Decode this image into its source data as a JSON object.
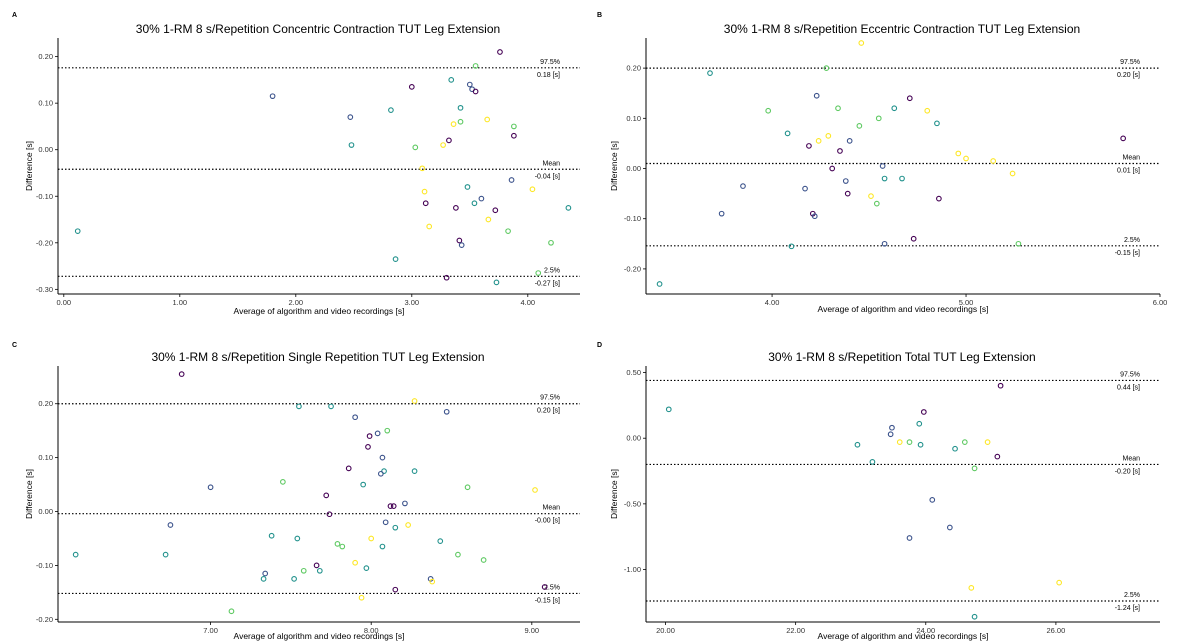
{
  "figure": {
    "panels": [
      {
        "letter": "A"
      },
      {
        "letter": "B"
      },
      {
        "letter": "C"
      },
      {
        "letter": "D"
      }
    ]
  },
  "colors": {
    "palette": [
      "#440154",
      "#3b528b",
      "#21918c",
      "#5ec962",
      "#fde725"
    ],
    "reference_line": "#000000",
    "axis": "#000000"
  },
  "chart_data": [
    {
      "type": "scatter",
      "panel": "A",
      "title": "30% 1-RM 8 s/Repetition Concentric Contraction TUT Leg Extension",
      "xlabel": "Average of algorithm and video recordings [s]",
      "ylabel": "Difference [s]",
      "xlim": [
        -0.05,
        4.45
      ],
      "ylim": [
        -0.31,
        0.24
      ],
      "xticks": [
        0,
        1,
        2,
        3,
        4
      ],
      "xtick_labels": [
        "0.00",
        "1.00",
        "2.00",
        "3.00",
        "4.00"
      ],
      "yticks": [
        0.2,
        0.1,
        0.0,
        -0.1,
        -0.2,
        -0.3
      ],
      "ytick_labels": [
        "0.20",
        "0.10",
        "0.00",
        "-0.10",
        "-0.20",
        "-0.30"
      ],
      "hlines": [
        {
          "value": 0.176,
          "top": "97.5%",
          "bottom": "0.18 [s]"
        },
        {
          "value": -0.042,
          "top": "Mean",
          "bottom": "-0.04 [s]"
        },
        {
          "value": -0.272,
          "top": "2.5%",
          "bottom": "-0.27 [s]"
        }
      ],
      "x": [
        0.12,
        1.8,
        2.47,
        2.82,
        3.0,
        3.34,
        3.55,
        3.76,
        3.88,
        2.48,
        3.36,
        3.52,
        3.42,
        3.42,
        3.5,
        3.55,
        3.65,
        3.32,
        3.27,
        3.03,
        3.88,
        3.09,
        3.11,
        3.12,
        3.48,
        3.54,
        3.6,
        3.38,
        3.15,
        3.72,
        3.86,
        3.66,
        4.04,
        4.35,
        4.2,
        3.83,
        3.41,
        3.43,
        3.3,
        2.86,
        4.09,
        3.73
      ],
      "y": [
        -0.175,
        0.115,
        0.07,
        0.085,
        0.135,
        0.15,
        0.18,
        0.21,
        0.05,
        0.01,
        0.055,
        0.13,
        0.09,
        0.06,
        0.14,
        0.125,
        0.065,
        0.02,
        0.01,
        0.005,
        0.03,
        -0.04,
        -0.09,
        -0.115,
        -0.08,
        -0.115,
        -0.105,
        -0.125,
        -0.165,
        -0.13,
        -0.065,
        -0.15,
        -0.085,
        -0.125,
        -0.2,
        -0.175,
        -0.195,
        -0.205,
        -0.275,
        -0.235,
        -0.265,
        -0.285
      ],
      "colors": [
        2,
        1,
        1,
        2,
        0,
        2,
        3,
        0,
        3,
        2,
        4,
        1,
        2,
        3,
        1,
        0,
        4,
        0,
        4,
        3,
        0,
        4,
        4,
        0,
        2,
        2,
        1,
        0,
        4,
        0,
        1,
        4,
        4,
        2,
        3,
        3,
        0,
        1,
        0,
        2,
        3,
        2
      ]
    },
    {
      "type": "scatter",
      "panel": "B",
      "title": "30% 1-RM 8 s/Repetition Eccentric Contraction TUT Leg Extension",
      "xlabel": "Average of algorithm and video recordings [s]",
      "ylabel": "Difference [s]",
      "xlim": [
        3.35,
        6.0
      ],
      "ylim": [
        -0.25,
        0.26
      ],
      "xticks": [
        4,
        5,
        6
      ],
      "xtick_labels": [
        "4.00",
        "5.00",
        "6.00"
      ],
      "yticks": [
        0.2,
        0.1,
        0.0,
        -0.1,
        -0.2
      ],
      "ytick_labels": [
        "0.20",
        "0.10",
        "0.00",
        "-0.10",
        "-0.20"
      ],
      "hlines": [
        {
          "value": 0.2,
          "top": "97.5%",
          "bottom": "0.20 [s]"
        },
        {
          "value": 0.01,
          "top": "Mean",
          "bottom": "0.01 [s]"
        },
        {
          "value": -0.154,
          "top": "2.5%",
          "bottom": "-0.15 [s]"
        }
      ],
      "x": [
        3.68,
        4.28,
        4.46,
        3.98,
        4.23,
        4.08,
        4.34,
        4.55,
        4.71,
        4.8,
        4.85,
        4.24,
        4.19,
        4.4,
        4.45,
        4.63,
        4.29,
        4.35,
        4.57,
        4.96,
        5.0,
        5.14,
        5.24,
        4.31,
        3.85,
        4.38,
        4.17,
        4.58,
        4.67,
        4.21,
        4.22,
        3.74,
        4.51,
        4.54,
        4.39,
        4.86,
        4.1,
        4.58,
        4.73,
        5.27,
        3.42,
        5.81
      ],
      "y": [
        0.19,
        0.2,
        0.25,
        0.115,
        0.145,
        0.07,
        0.12,
        0.1,
        0.14,
        0.115,
        0.09,
        0.055,
        0.045,
        0.055,
        0.085,
        0.12,
        0.065,
        0.035,
        0.005,
        0.03,
        0.02,
        0.015,
        -0.01,
        0.0,
        -0.035,
        -0.025,
        -0.04,
        -0.02,
        -0.02,
        -0.09,
        -0.095,
        -0.09,
        -0.055,
        -0.07,
        -0.05,
        -0.06,
        -0.155,
        -0.15,
        -0.14,
        -0.15,
        -0.23,
        0.06
      ],
      "colors": [
        2,
        3,
        4,
        3,
        1,
        2,
        3,
        3,
        0,
        4,
        2,
        4,
        0,
        1,
        3,
        2,
        4,
        0,
        1,
        4,
        4,
        4,
        4,
        0,
        1,
        1,
        1,
        2,
        2,
        0,
        1,
        1,
        4,
        3,
        0,
        0,
        2,
        1,
        0,
        3,
        2,
        0
      ]
    },
    {
      "type": "scatter",
      "panel": "C",
      "title": "30% 1-RM 8 s/Repetition Single Repetition TUT Leg Extension",
      "xlabel": "Average of algorithm and video recordings [s]",
      "ylabel": "Difference [s]",
      "xlim": [
        6.05,
        9.3
      ],
      "ylim": [
        -0.205,
        0.27
      ],
      "xticks": [
        7,
        8,
        9
      ],
      "xtick_labels": [
        "7.00",
        "8.00",
        "9.00"
      ],
      "yticks": [
        0.2,
        0.1,
        0.0,
        -0.1,
        -0.2
      ],
      "ytick_labels": [
        "0.20",
        "0.10",
        "0.00",
        "-0.10",
        "-0.20"
      ],
      "hlines": [
        {
          "value": 0.2,
          "top": "97.5%",
          "bottom": "0.20 [s]"
        },
        {
          "value": -0.004,
          "top": "Mean",
          "bottom": "-0.00 [s]"
        },
        {
          "value": -0.152,
          "top": "2.5%",
          "bottom": "-0.15 [s]"
        }
      ],
      "x": [
        6.82,
        7.55,
        7.75,
        7.9,
        8.27,
        8.47,
        7.99,
        8.04,
        8.1,
        8.07,
        7.98,
        8.14,
        7.0,
        7.45,
        7.86,
        8.08,
        8.27,
        8.21,
        7.72,
        7.74,
        7.95,
        8.06,
        8.09,
        8.12,
        8.15,
        8.23,
        8.6,
        8.43,
        7.38,
        7.54,
        7.79,
        7.82,
        8.0,
        8.07,
        7.66,
        7.68,
        7.9,
        7.97,
        8.37,
        8.54,
        8.7,
        6.16,
        6.75,
        6.72,
        7.52,
        7.58,
        7.34,
        7.33,
        8.15,
        8.38,
        7.94,
        7.13,
        9.02,
        9.08
      ],
      "y": [
        0.255,
        0.195,
        0.195,
        0.175,
        0.205,
        0.185,
        0.14,
        0.145,
        0.15,
        0.1,
        0.12,
        0.01,
        0.045,
        0.055,
        0.08,
        0.075,
        0.075,
        0.015,
        0.03,
        -0.005,
        0.05,
        0.07,
        -0.02,
        0.01,
        -0.03,
        -0.025,
        0.045,
        -0.055,
        -0.045,
        -0.05,
        -0.06,
        -0.065,
        -0.05,
        -0.065,
        -0.1,
        -0.11,
        -0.095,
        -0.105,
        -0.125,
        -0.08,
        -0.09,
        -0.08,
        -0.025,
        -0.08,
        -0.125,
        -0.11,
        -0.115,
        -0.125,
        -0.145,
        -0.13,
        -0.16,
        -0.185,
        0.04,
        -0.14
      ],
      "colors": [
        0,
        2,
        2,
        1,
        4,
        1,
        0,
        1,
        3,
        1,
        0,
        0,
        1,
        3,
        0,
        2,
        2,
        1,
        0,
        0,
        2,
        1,
        1,
        0,
        2,
        4,
        3,
        2,
        2,
        2,
        3,
        3,
        4,
        2,
        0,
        2,
        4,
        2,
        1,
        3,
        3,
        2,
        1,
        2,
        2,
        3,
        1,
        2,
        0,
        4,
        4,
        3,
        4,
        0
      ]
    },
    {
      "type": "scatter",
      "panel": "D",
      "title": "30% 1-RM 8 s/Repetition Total TUT Leg Extension",
      "xlabel": "Average of algorithm and video recordings [s]",
      "ylabel": "Difference [s]",
      "xlim": [
        19.7,
        27.6
      ],
      "ylim": [
        -1.4,
        0.55
      ],
      "xticks": [
        20,
        22,
        24,
        26
      ],
      "xtick_labels": [
        "20.00",
        "22.00",
        "24.00",
        "26.00"
      ],
      "yticks": [
        0.5,
        0.0,
        -0.5,
        -1.0
      ],
      "ytick_labels": [
        "0.50",
        "0.00",
        "-0.50",
        "-1.00"
      ],
      "hlines": [
        {
          "value": 0.44,
          "top": "97.5%",
          "bottom": "0.44 [s]"
        },
        {
          "value": -0.2,
          "top": "Mean",
          "bottom": "-0.20 [s]"
        },
        {
          "value": -1.24,
          "top": "2.5%",
          "bottom": "-1.24 [s]"
        }
      ],
      "x": [
        20.05,
        25.15,
        23.48,
        23.46,
        23.97,
        23.9,
        23.6,
        23.75,
        23.92,
        24.45,
        24.6,
        24.95,
        25.1,
        22.95,
        23.18,
        24.75,
        24.1,
        23.75,
        24.37,
        24.7,
        26.05,
        24.75
      ],
      "y": [
        0.22,
        0.4,
        0.08,
        0.03,
        0.2,
        0.11,
        -0.03,
        -0.03,
        -0.05,
        -0.08,
        -0.03,
        -0.03,
        -0.14,
        -0.05,
        -0.18,
        -0.23,
        -0.47,
        -0.76,
        -0.68,
        -1.14,
        -1.1,
        -1.36
      ],
      "colors": [
        2,
        0,
        1,
        1,
        0,
        2,
        4,
        3,
        2,
        2,
        3,
        4,
        0,
        2,
        2,
        3,
        1,
        1,
        1,
        4,
        4,
        2
      ]
    }
  ]
}
